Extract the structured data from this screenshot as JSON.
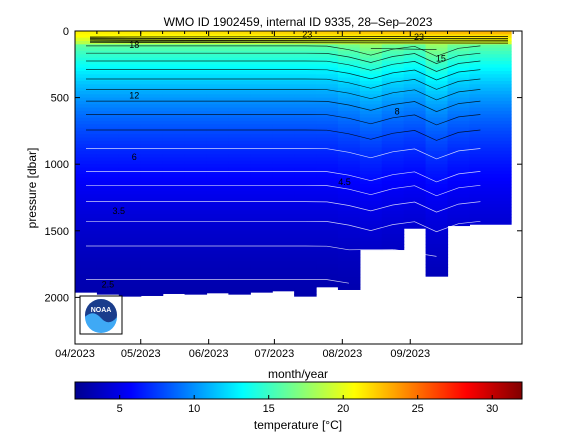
{
  "chart_data": {
    "type": "heatmap",
    "title": "WMO ID 1902459, internal ID 9335, 28–Sep–2023",
    "xlabel": "month/year",
    "ylabel": "pressure [dbar]",
    "x_ticks": [
      "04/2023",
      "05/2023",
      "06/2023",
      "07/2023",
      "08/2023",
      "09/2023"
    ],
    "y_ticks": [
      0,
      500,
      1000,
      1500,
      2000
    ],
    "ylim": [
      0,
      2350
    ],
    "y_reversed": true,
    "x_range": [
      "2023-04-01",
      "2023-10-22"
    ],
    "colorbar": {
      "label": "temperature [°C]",
      "ticks": [
        5,
        10,
        15,
        20,
        25,
        30
      ],
      "range": [
        2,
        32
      ],
      "colormap": "jet"
    },
    "contour_labels": [
      {
        "date": "2023-04-28",
        "pressure": 105,
        "text": "18"
      },
      {
        "date": "2023-07-16",
        "pressure": 25,
        "text": "23"
      },
      {
        "date": "2023-09-05",
        "pressure": 45,
        "text": "23"
      },
      {
        "date": "2023-09-15",
        "pressure": 205,
        "text": "15"
      },
      {
        "date": "2023-04-28",
        "pressure": 485,
        "text": "12"
      },
      {
        "date": "2023-08-26",
        "pressure": 605,
        "text": "8"
      },
      {
        "date": "2023-04-28",
        "pressure": 945,
        "text": "6"
      },
      {
        "date": "2023-08-02",
        "pressure": 1135,
        "text": "4.5"
      },
      {
        "date": "2023-04-21",
        "pressure": 1350,
        "text": "3.5"
      },
      {
        "date": "2023-04-16",
        "pressure": 1905,
        "text": "2.5"
      }
    ],
    "profiles": [
      {
        "date": "2023-04-01",
        "max_pressure": 1960
      },
      {
        "date": "2023-04-11",
        "max_pressure": 1975
      },
      {
        "date": "2023-04-21",
        "max_pressure": 1990
      },
      {
        "date": "2023-05-01",
        "max_pressure": 1985
      },
      {
        "date": "2023-05-11",
        "max_pressure": 1970
      },
      {
        "date": "2023-05-21",
        "max_pressure": 1975
      },
      {
        "date": "2023-05-31",
        "max_pressure": 1965
      },
      {
        "date": "2023-06-10",
        "max_pressure": 1975
      },
      {
        "date": "2023-06-20",
        "max_pressure": 1960
      },
      {
        "date": "2023-06-30",
        "max_pressure": 1950
      },
      {
        "date": "2023-07-10",
        "max_pressure": 1990
      },
      {
        "date": "2023-07-20",
        "max_pressure": 1920
      },
      {
        "date": "2023-07-30",
        "max_pressure": 1940
      },
      {
        "date": "2023-08-09",
        "max_pressure": 1640
      },
      {
        "date": "2023-08-19",
        "max_pressure": 1640
      },
      {
        "date": "2023-08-29",
        "max_pressure": 1480
      },
      {
        "date": "2023-09-08",
        "max_pressure": 1840
      },
      {
        "date": "2023-09-18",
        "max_pressure": 1460
      },
      {
        "date": "2023-09-28",
        "max_pressure": 1450
      }
    ]
  },
  "logo": {
    "text": "NOAA"
  }
}
